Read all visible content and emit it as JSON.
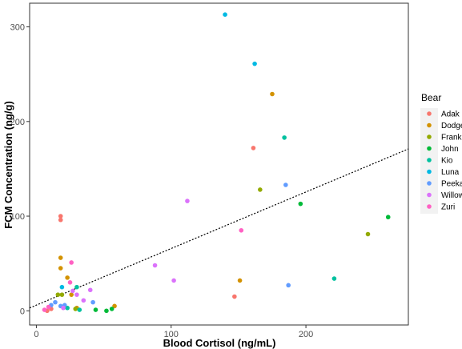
{
  "chart_data": {
    "type": "scatter",
    "xlabel": "Blood Cortisol (ng/mL)",
    "ylabel": "FCM Concentration (ng/g)",
    "xlim": [
      -5,
      276
    ],
    "ylim": [
      -15,
      325
    ],
    "x_ticks": [
      0,
      100,
      200
    ],
    "y_ticks": [
      0,
      100,
      200,
      300
    ],
    "grid": false,
    "legend_title": "Bear",
    "legend_position": "right",
    "trendline": {
      "style": "dotted",
      "x": [
        -5,
        276
      ],
      "y": [
        3,
        171
      ]
    },
    "series": [
      {
        "name": "Adak",
        "color": "#F8766D",
        "points": [
          [
            8,
            0
          ],
          [
            11,
            2
          ],
          [
            18,
            100
          ],
          [
            18,
            96
          ],
          [
            147,
            15
          ],
          [
            161,
            172
          ]
        ]
      },
      {
        "name": "Dodge",
        "color": "#D39200",
        "points": [
          [
            18,
            56
          ],
          [
            18,
            45
          ],
          [
            23,
            35
          ],
          [
            26,
            17
          ],
          [
            30,
            3
          ],
          [
            58,
            5
          ],
          [
            151,
            32
          ],
          [
            175,
            229
          ]
        ]
      },
      {
        "name": "Frank",
        "color": "#93AA00",
        "points": [
          [
            16,
            17
          ],
          [
            19,
            17
          ],
          [
            29,
            2
          ],
          [
            166,
            128
          ],
          [
            246,
            81
          ]
        ]
      },
      {
        "name": "John",
        "color": "#00BA38",
        "points": [
          [
            44,
            1
          ],
          [
            52,
            0
          ],
          [
            56,
            2
          ],
          [
            196,
            113
          ],
          [
            261,
            99
          ]
        ]
      },
      {
        "name": "Kio",
        "color": "#00C19F",
        "points": [
          [
            23,
            3
          ],
          [
            30,
            25
          ],
          [
            32,
            1
          ],
          [
            184,
            183
          ],
          [
            221,
            34
          ]
        ]
      },
      {
        "name": "Luna",
        "color": "#00B9E3",
        "points": [
          [
            19,
            25
          ],
          [
            140,
            313
          ],
          [
            162,
            261
          ]
        ]
      },
      {
        "name": "Peeka",
        "color": "#619CFF",
        "points": [
          [
            11,
            6
          ],
          [
            14,
            9
          ],
          [
            18,
            5
          ],
          [
            21,
            6
          ],
          [
            42,
            9
          ],
          [
            185,
            133
          ],
          [
            187,
            27
          ]
        ]
      },
      {
        "name": "Willow",
        "color": "#DB72FB",
        "points": [
          [
            20,
            3
          ],
          [
            27,
            21
          ],
          [
            30,
            17
          ],
          [
            35,
            11
          ],
          [
            40,
            22
          ],
          [
            88,
            48
          ],
          [
            102,
            32
          ],
          [
            112,
            116
          ]
        ]
      },
      {
        "name": "Zuri",
        "color": "#FF61C3",
        "points": [
          [
            6,
            1
          ],
          [
            9,
            4
          ],
          [
            25,
            30
          ],
          [
            26,
            51
          ],
          [
            152,
            85
          ]
        ]
      }
    ]
  }
}
